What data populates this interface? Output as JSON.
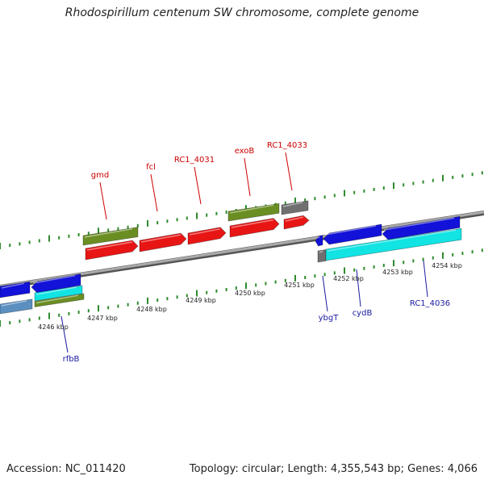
{
  "title": "Rhodospirillum centenum SW chromosome, complete genome",
  "accession": "Accession: NC_011420",
  "summary": "Topology: circular; Length: 4,355,543 bp; Genes: 4,066",
  "colors": {
    "backbone": "#888888",
    "tick": "#2e8b2e",
    "plus_label": "#cc0000",
    "minus_label": "#1a1aa0",
    "red": "#e81515",
    "olive": "#6b8e23",
    "gray": "#707070",
    "blue": "#1212d8",
    "cyan": "#12e3e3",
    "steel": "#5b8fc0"
  },
  "scale_labels": [
    "4246 kbp",
    "4247 kbp",
    "4248 kbp",
    "4249 kbp",
    "4250 kbp",
    "4251 kbp",
    "4252 kbp",
    "4253 kbp",
    "4254 kbp"
  ],
  "gene_labels_plus": [
    "gmd",
    "fcl",
    "RC1_4031",
    "exoB",
    "RC1_4033"
  ],
  "gene_labels_minus": [
    "rfbB",
    "ybgT",
    "cydB",
    "RC1_4036"
  ]
}
